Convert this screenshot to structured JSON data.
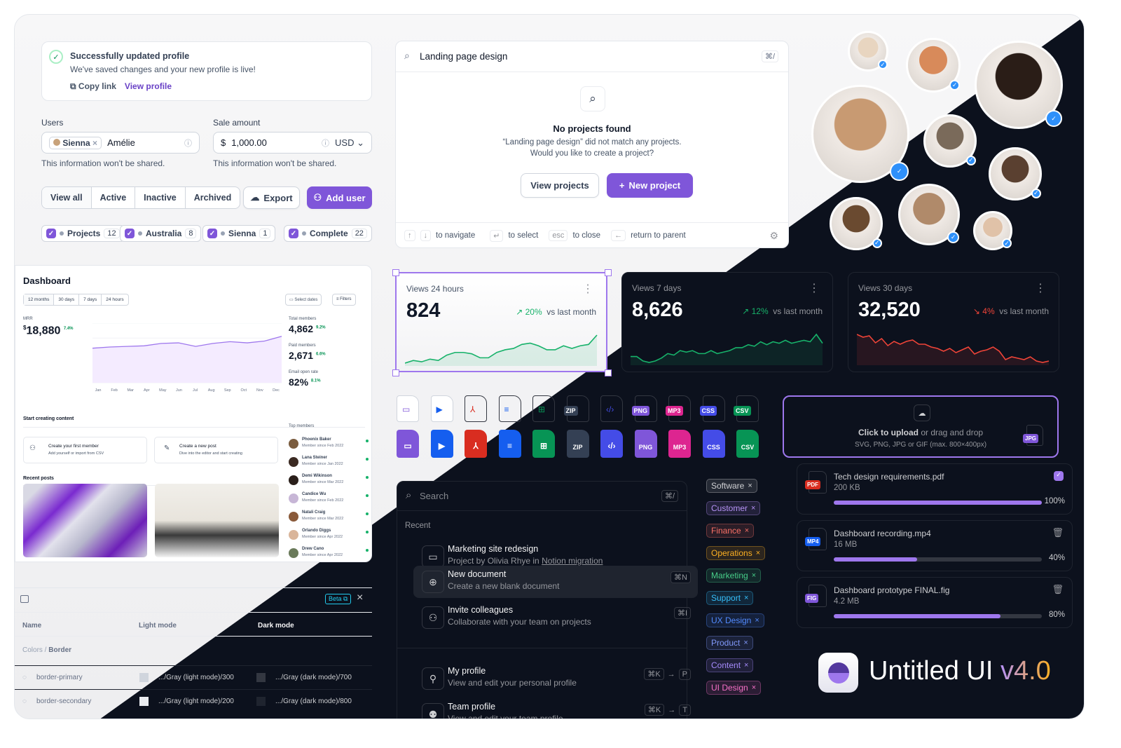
{
  "notification": {
    "title": "Successfully updated profile",
    "message": "We've saved changes and your new profile is live!",
    "copy_link": "Copy link",
    "view_profile": "View profile"
  },
  "form": {
    "users_label": "Users",
    "users_chip": "Sienna",
    "users_value": "Amélie",
    "users_help": "This information won't be shared.",
    "sale_label": "Sale amount",
    "currency_symbol": "$",
    "sale_value": "1,000.00",
    "currency": "USD",
    "sale_help": "This information won't be shared."
  },
  "filters": {
    "tabs": [
      "View all",
      "Active",
      "Inactive",
      "Archived"
    ],
    "export": "Export",
    "add_user": "Add user",
    "chips": [
      {
        "label": "Projects",
        "count": "12"
      },
      {
        "label": "Australia",
        "count": "8"
      },
      {
        "label": "Sienna",
        "count": "1"
      },
      {
        "label": "Complete",
        "count": "22"
      }
    ]
  },
  "dashboard": {
    "title": "Dashboard",
    "ranges": [
      "12 months",
      "30 days",
      "7 days",
      "24 hours"
    ],
    "select_dates": "Select dates",
    "filters": "Filters",
    "mrr_label": "MRR",
    "mrr_currency": "$",
    "mrr_value": "18,880",
    "mrr_change": "7.4%",
    "stats": [
      {
        "label": "Total members",
        "value": "4,862",
        "change": "9.2%"
      },
      {
        "label": "Paid members",
        "value": "2,671",
        "change": "6.6%"
      },
      {
        "label": "Email open rate",
        "value": "82%",
        "change": "8.1%"
      }
    ],
    "chart_data": {
      "type": "area",
      "categories": [
        "Jan",
        "Feb",
        "Mar",
        "Apr",
        "May",
        "Jun",
        "Jul",
        "Aug",
        "Sep",
        "Oct",
        "Nov",
        "Dec"
      ],
      "values": [
        58,
        60,
        61,
        62,
        66,
        67,
        61,
        66,
        69,
        67,
        70,
        78
      ],
      "ylim": [
        0,
        100
      ]
    },
    "start_title": "Start creating content",
    "actions": [
      {
        "title": "Create your first member",
        "subtitle": "Add yourself or import from CSV"
      },
      {
        "title": "Create a new post",
        "subtitle": "Dive into the editor and start creating"
      }
    ],
    "recent_posts": "Recent posts",
    "top_members_title": "Top members",
    "top_members": [
      {
        "name": "Phoenix Baker",
        "since": "Member since Feb 2022"
      },
      {
        "name": "Lana Steiner",
        "since": "Member since Jan 2022"
      },
      {
        "name": "Demi Wikinson",
        "since": "Member since Mar 2022"
      },
      {
        "name": "Candice Wu",
        "since": "Member since Feb 2022"
      },
      {
        "name": "Natali Craig",
        "since": "Member since Mar 2022"
      },
      {
        "name": "Orlando Diggs",
        "since": "Member since Apr 2022"
      },
      {
        "name": "Drew Cano",
        "since": "Member since Apr 2022"
      }
    ]
  },
  "tokens": {
    "beta": "Beta",
    "columns": [
      "Name",
      "Light mode",
      "Dark mode"
    ],
    "group_prefix": "Colors /",
    "group": "Border",
    "rows": [
      {
        "name": "border-primary",
        "light": ".../Gray (light mode)/300",
        "dark": ".../Gray (dark mode)/700",
        "light_color": "#d0d5dd",
        "dark_color": "#333741"
      },
      {
        "name": "border-secondary",
        "light": ".../Gray (light mode)/200",
        "dark": ".../Gray (dark mode)/800",
        "light_color": "#eaecf0",
        "dark_color": "#1f242f"
      }
    ]
  },
  "search_modal": {
    "query": "Landing page design",
    "shortcut": "⌘/",
    "empty_title": "No projects found",
    "empty_line1": "“Landing page design” did not match any projects.",
    "empty_line2": "Would you like to create a project?",
    "view_projects": "View projects",
    "new_project": "New project",
    "footer": {
      "navigate": "to navigate",
      "select": "to select",
      "esc": "esc",
      "close": "to close",
      "parent": "return to parent"
    }
  },
  "metrics": [
    {
      "title": "Views 24 hours",
      "value": "824",
      "change": "20%",
      "trend": "up",
      "suffix": "vs last month",
      "spark": [
        3,
        5,
        4,
        6,
        5,
        9,
        11,
        11,
        10,
        7,
        7,
        11,
        13,
        14,
        17,
        18,
        16,
        13,
        13,
        16,
        14,
        16,
        17,
        24
      ]
    },
    {
      "title": "Views 7 days",
      "value": "8,626",
      "change": "12%",
      "trend": "up",
      "suffix": "vs last month",
      "spark": [
        6,
        6,
        3,
        2,
        3,
        5,
        8,
        7,
        10,
        9,
        10,
        8,
        8,
        10,
        8,
        9,
        10,
        12,
        12,
        14,
        13,
        16,
        14,
        16,
        15,
        17,
        15,
        16,
        17,
        16,
        21,
        15
      ]
    },
    {
      "title": "Views 30 days",
      "value": "32,520",
      "change": "4%",
      "trend": "down",
      "suffix": "vs last month",
      "spark": [
        22,
        20,
        21,
        16,
        19,
        14,
        17,
        15,
        17,
        18,
        15,
        15,
        13,
        12,
        10,
        12,
        9,
        11,
        13,
        8,
        10,
        11,
        13,
        10,
        4,
        6,
        5,
        4,
        6,
        3,
        2,
        3
      ]
    }
  ],
  "file_types": [
    "folder",
    "video",
    "pdf",
    "doc",
    "sheet",
    "ZIP",
    "code",
    "PNG",
    "MP3",
    "CSS",
    "CSV"
  ],
  "file_colors": [
    "#7f56d9",
    "#155eef",
    "#d92d20",
    "#155eef",
    "#079455",
    "#344054",
    "#444ce7",
    "#7f56d9",
    "#dd2590",
    "#444ce7",
    "#079455"
  ],
  "upload": {
    "cta": "Click to upload",
    "rest": "or drag and drop",
    "hint": "SVG, PNG, JPG or GIF (max. 800×400px)",
    "badge": "JPG"
  },
  "files": [
    {
      "name": "Tech design requirements.pdf",
      "size": "200 KB",
      "progress": 100,
      "badge": "PDF",
      "color": "#d92d20",
      "done": true
    },
    {
      "name": "Dashboard recording.mp4",
      "size": "16 MB",
      "progress": 40,
      "badge": "MP4",
      "color": "#155eef",
      "done": false
    },
    {
      "name": "Dashboard prototype FINAL.fig",
      "size": "4.2 MB",
      "progress": 80,
      "badge": "FIG",
      "color": "#7f56d9",
      "done": false
    }
  ],
  "command": {
    "placeholder": "Search",
    "shortcut": "⌘/",
    "section": "Recent",
    "items": [
      {
        "title": "Marketing site redesign",
        "subtitle": "Project by Olivia Rhye in",
        "link": "Notion migration",
        "icon": "folder",
        "keys": []
      },
      {
        "title": "New document",
        "subtitle": "Create a new blank document",
        "icon": "file-plus",
        "keys": [
          "⌘N"
        ]
      },
      {
        "title": "Invite colleagues",
        "subtitle": "Collaborate with your team on projects",
        "icon": "user-plus",
        "keys": [
          "⌘I"
        ]
      },
      {
        "title": "My profile",
        "subtitle": "View and edit your personal profile",
        "icon": "user",
        "keys": [
          "⌘K",
          "→",
          "P"
        ]
      },
      {
        "title": "Team profile",
        "subtitle": "View and edit your team profile",
        "icon": "users",
        "keys": [
          "⌘K",
          "→",
          "T"
        ]
      }
    ]
  },
  "tags": [
    {
      "label": "Software",
      "color": "#cecfd2"
    },
    {
      "label": "Customer",
      "color": "#b692f6"
    },
    {
      "label": "Finance",
      "color": "#f97066"
    },
    {
      "label": "Operations",
      "color": "#fdb022"
    },
    {
      "label": "Marketing",
      "color": "#47cd89"
    },
    {
      "label": "Support",
      "color": "#36bffa"
    },
    {
      "label": "UX Design",
      "color": "#528bff"
    },
    {
      "label": "Product",
      "color": "#8098f9"
    },
    {
      "label": "Content",
      "color": "#a48afb"
    },
    {
      "label": "UI Design",
      "color": "#f670c7"
    }
  ],
  "brand": {
    "name": "Untitled UI",
    "version": "v4.0"
  },
  "colors": {
    "accent": "#7f56d9",
    "success": "#17b26a",
    "error": "#f04438",
    "dark_bg": "#0c111d"
  }
}
